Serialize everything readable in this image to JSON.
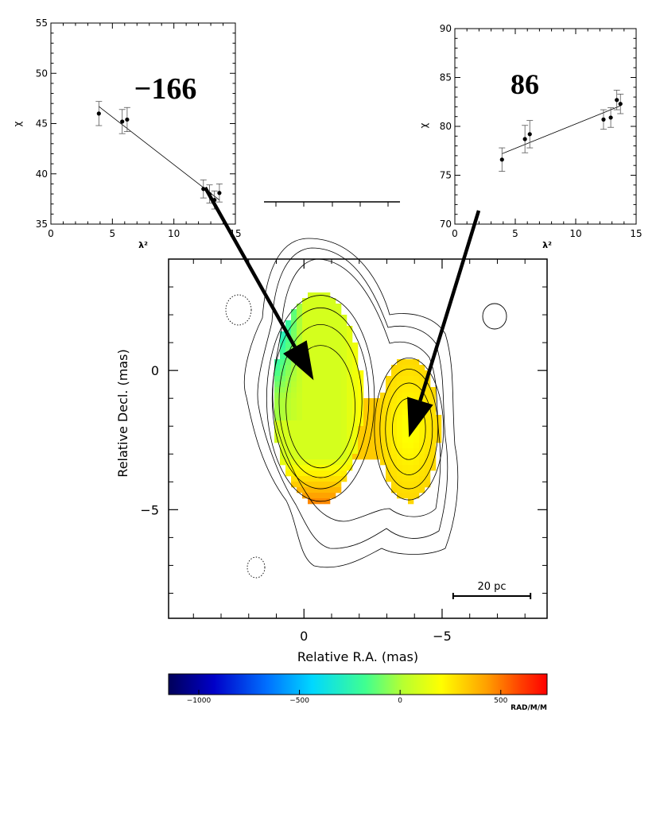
{
  "colors": {
    "axis": "#000000",
    "contour": "#000000",
    "fit_line": "#000000",
    "error_bar": "#555555",
    "arrow": "#000000"
  },
  "chart_data": [
    {
      "id": "left-inset",
      "type": "scatter",
      "title": "−166",
      "xlabel": "λ²",
      "ylabel": "χ",
      "xlim": [
        0,
        15
      ],
      "ylim": [
        35,
        55
      ],
      "xticks": [
        0,
        5,
        10,
        15
      ],
      "yticks": [
        35,
        40,
        45,
        50,
        55
      ],
      "points": [
        {
          "x": 3.9,
          "y": 46.0,
          "err": 1.2
        },
        {
          "x": 5.8,
          "y": 45.2,
          "err": 1.2
        },
        {
          "x": 6.2,
          "y": 45.4,
          "err": 1.2
        },
        {
          "x": 12.4,
          "y": 38.5,
          "err": 0.9
        },
        {
          "x": 12.9,
          "y": 38.0,
          "err": 0.9
        },
        {
          "x": 13.3,
          "y": 37.4,
          "err": 0.9
        },
        {
          "x": 13.7,
          "y": 38.1,
          "err": 0.9
        }
      ],
      "fit": {
        "x": [
          3.9,
          13.7
        ],
        "y": [
          46.7,
          37.4
        ]
      }
    },
    {
      "id": "right-inset",
      "type": "scatter",
      "title": "86",
      "xlabel": "λ²",
      "ylabel": "χ",
      "xlim": [
        0,
        15
      ],
      "ylim": [
        70,
        90
      ],
      "xticks": [
        0,
        5,
        10,
        15
      ],
      "yticks": [
        70,
        75,
        80,
        85,
        90
      ],
      "points": [
        {
          "x": 3.9,
          "y": 76.6,
          "err": 1.2
        },
        {
          "x": 5.8,
          "y": 78.7,
          "err": 1.4
        },
        {
          "x": 6.2,
          "y": 79.2,
          "err": 1.4
        },
        {
          "x": 12.3,
          "y": 80.7,
          "err": 1.0
        },
        {
          "x": 12.9,
          "y": 80.9,
          "err": 1.0
        },
        {
          "x": 13.4,
          "y": 82.7,
          "err": 1.0
        },
        {
          "x": 13.7,
          "y": 82.3,
          "err": 1.0
        }
      ],
      "fit": {
        "x": [
          3.9,
          13.7
        ],
        "y": [
          77.2,
          82.1
        ]
      }
    },
    {
      "id": "main-map",
      "type": "heatmap",
      "xlabel": "Relative R.A. (mas)",
      "ylabel": "Relative Decl. (mas)",
      "xlim": [
        4.9,
        -8.8
      ],
      "ylim": [
        -8.9,
        4.0
      ],
      "xticks": [
        0,
        -5
      ],
      "xtick_labels": [
        "0",
        "−5"
      ],
      "yticks": [
        0,
        -5
      ],
      "ytick_labels": [
        "0",
        "−5"
      ],
      "scale_bar": {
        "label": "20 pc",
        "x1": -5.4,
        "x2": -8.2,
        "y": -8.1
      },
      "components": [
        {
          "name": "core",
          "cx": -0.5,
          "cy": -1.0,
          "rx": 1.6,
          "ry": 3.8,
          "rm_center": 150,
          "rm_edge_left": -450,
          "rm_bottom": 450
        },
        {
          "name": "jet",
          "cx": -3.8,
          "cy": -2.1,
          "rx": 1.1,
          "ry": 2.6,
          "rm_center": 180,
          "rm_edge": 220
        }
      ],
      "contours": [
        {
          "cx": -0.6,
          "cy": -1.3,
          "rx": 1.25,
          "ry": 2.2
        },
        {
          "cx": -0.6,
          "cy": -1.1,
          "rx": 1.5,
          "ry": 2.75
        },
        {
          "cx": -0.6,
          "cy": -1.0,
          "rx": 1.75,
          "ry": 3.25
        },
        {
          "cx": -0.6,
          "cy": -1.0,
          "rx": 1.95,
          "ry": 3.7
        },
        {
          "cx": -3.8,
          "cy": -2.1,
          "rx": 0.6,
          "ry": 1.1
        },
        {
          "cx": -3.8,
          "cy": -2.1,
          "rx": 0.85,
          "ry": 1.65
        },
        {
          "cx": -3.8,
          "cy": -2.1,
          "rx": 1.05,
          "ry": 2.15
        },
        {
          "cx": -3.8,
          "cy": -2.1,
          "rx": 1.25,
          "ry": 2.55
        }
      ],
      "arrows": [
        {
          "from_inset": "left-inset",
          "to": [
            -0.35,
            -0.35
          ]
        },
        {
          "from_inset": "right-inset",
          "to": [
            -3.8,
            -2.4
          ]
        }
      ]
    },
    {
      "id": "colorbar",
      "type": "colorbar",
      "range": [
        -1150,
        730
      ],
      "ticks": [
        -1000,
        -500,
        0,
        500
      ],
      "tick_labels": [
        "−1000",
        "−500",
        "0",
        "500"
      ],
      "unit": "RAD/M/M"
    }
  ]
}
